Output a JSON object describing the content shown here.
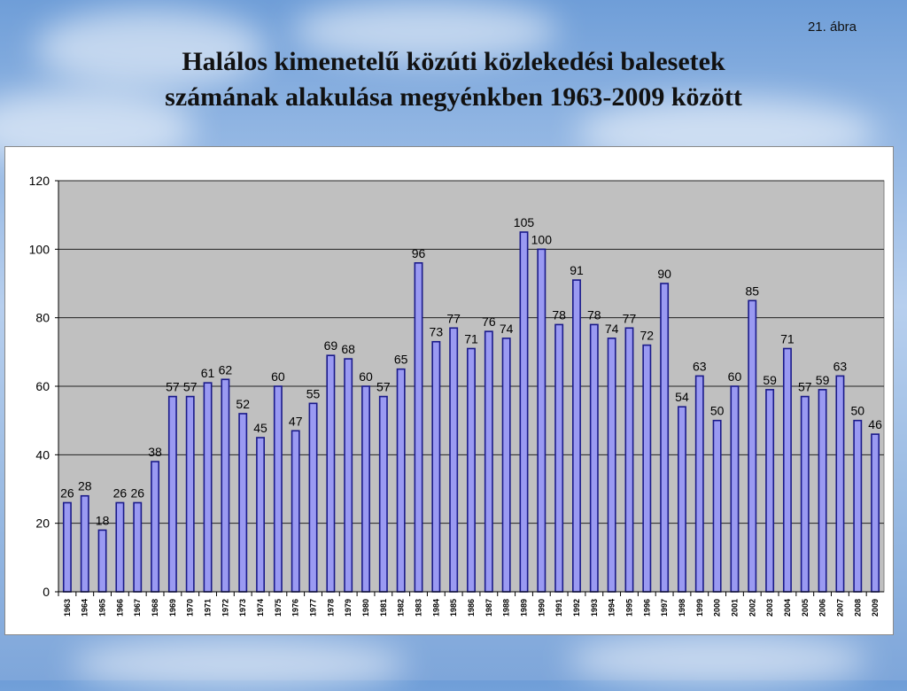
{
  "figure_label": "21. ábra",
  "title_lines": [
    "Halálos kimenetelű közúti közlekedési balesetek",
    "számának alakulása megyénkben 1963-2009 között"
  ],
  "colors": {
    "bar_fill": "#9a9af2",
    "bar_stroke": "#1a1a8a",
    "plot_bg": "#c0c0c0",
    "grid": "#222222"
  },
  "chart_data": {
    "type": "bar",
    "title": "Halálos kimenetelű közúti közlekedési balesetek számának alakulása megyénkben 1963-2009 között",
    "xlabel": "",
    "ylabel": "",
    "ylim": [
      0,
      120
    ],
    "yticks": [
      0,
      20,
      40,
      60,
      80,
      100,
      120
    ],
    "grid": true,
    "legend": "none",
    "categories": [
      "1963",
      "1964",
      "1965",
      "1966",
      "1967",
      "1968",
      "1969",
      "1970",
      "1971",
      "1972",
      "1973",
      "1974",
      "1975",
      "1976",
      "1977",
      "1978",
      "1979",
      "1980",
      "1981",
      "1982",
      "1983",
      "1984",
      "1985",
      "1986",
      "1987",
      "1988",
      "1989",
      "1990",
      "1991",
      "1992",
      "1993",
      "1994",
      "1995",
      "1996",
      "1997",
      "1998",
      "1999",
      "2000",
      "2001",
      "2002",
      "2003",
      "2004",
      "2005",
      "2006",
      "2007",
      "2008",
      "2009"
    ],
    "values": [
      26,
      28,
      18,
      26,
      26,
      38,
      57,
      57,
      61,
      62,
      52,
      45,
      60,
      47,
      55,
      69,
      68,
      60,
      57,
      65,
      96,
      73,
      77,
      71,
      76,
      74,
      105,
      100,
      78,
      91,
      78,
      74,
      77,
      72,
      90,
      54,
      63,
      50,
      60,
      85,
      59,
      71,
      57,
      59,
      63,
      50,
      46
    ]
  }
}
